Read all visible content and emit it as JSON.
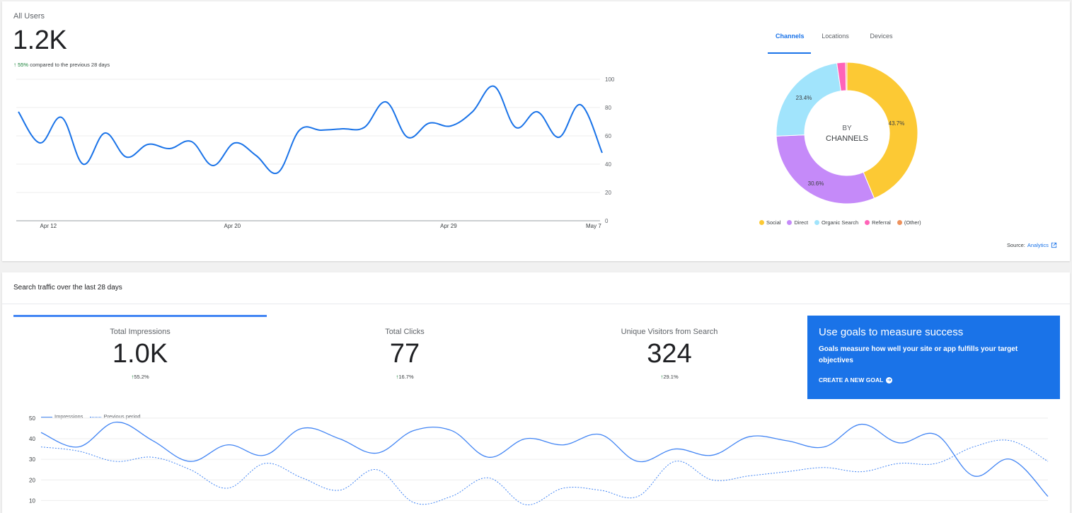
{
  "users": {
    "title": "All Users",
    "value": "1.2K",
    "change_pct": "55%",
    "change_text": "compared to the previous 28 days"
  },
  "channel_tabs": [
    "Channels",
    "Locations",
    "Devices"
  ],
  "donut": {
    "center_line1": "BY",
    "center_line2": "CHANNELS",
    "labels": {
      "social": "43.7%",
      "direct": "30.6%",
      "organic": "23.4%"
    }
  },
  "legend": [
    {
      "label": "Social",
      "color": "#fcc934"
    },
    {
      "label": "Direct",
      "color": "#c58af9"
    },
    {
      "label": "Organic Search",
      "color": "#a1e4fc"
    },
    {
      "label": "Referral",
      "color": "#ff63b8"
    },
    {
      "label": "(Other)",
      "color": "#ee925d"
    }
  ],
  "source": {
    "label": "Source:",
    "link": "Analytics"
  },
  "search": {
    "title": "Search traffic over the last 28 days",
    "metrics": [
      {
        "label": "Total Impressions",
        "value": "1.0K",
        "change": "55.2%"
      },
      {
        "label": "Total Clicks",
        "value": "77",
        "change": "16.7%"
      },
      {
        "label": "Unique Visitors from Search",
        "value": "324",
        "change": "29.1%"
      }
    ]
  },
  "goal": {
    "title": "Use goals to measure success",
    "desc": "Goals measure how well your site or app fulfills your target objectives",
    "button": "CREATE A NEW GOAL"
  },
  "imp_legend": {
    "current": "Impressions",
    "previous": "Previous period"
  },
  "chart_data": [
    {
      "type": "line",
      "title": "",
      "x_ticks": [
        "Apr 12",
        "Apr 20",
        "Apr 29",
        "May 7"
      ],
      "ylim": [
        0,
        100
      ],
      "y_ticks": [
        0,
        20,
        40,
        60,
        80,
        100
      ],
      "series": [
        {
          "values": [
            77,
            55,
            73,
            40,
            62,
            45,
            54,
            51,
            56,
            39,
            55,
            46,
            34,
            64,
            64,
            65,
            66,
            84,
            59,
            69,
            67,
            77,
            95,
            66,
            77,
            59,
            82,
            48
          ]
        }
      ],
      "grid": true,
      "line_color": "#1a73e8"
    },
    {
      "type": "pie",
      "slices": [
        {
          "label": "Social",
          "value": 43.7,
          "color": "#fcc934"
        },
        {
          "label": "Direct",
          "value": 30.6,
          "color": "#c58af9"
        },
        {
          "label": "Organic Search",
          "value": 23.4,
          "color": "#a1e4fc"
        },
        {
          "label": "Referral",
          "value": 2.0,
          "color": "#ff63b8"
        },
        {
          "label": "(Other)",
          "value": 0.3,
          "color": "#ee925d"
        }
      ]
    },
    {
      "type": "line",
      "y_ticks": [
        10,
        20,
        30,
        40,
        50
      ],
      "ylim": [
        5,
        52
      ],
      "series": [
        {
          "name": "Impressions",
          "values": [
            43,
            36,
            48,
            39,
            29,
            37,
            32,
            45,
            40,
            33,
            44,
            44,
            31,
            40,
            37,
            42,
            29,
            35,
            32,
            41,
            39,
            36,
            47,
            38,
            42,
            22,
            30,
            12
          ]
        },
        {
          "name": "Previous period",
          "values": [
            36,
            34,
            29,
            31,
            25,
            16,
            28,
            21,
            15,
            25,
            9,
            12,
            21,
            8,
            16,
            15,
            12,
            29,
            20,
            22,
            24,
            26,
            24,
            28,
            28,
            36,
            39,
            29
          ]
        }
      ],
      "grid": true
    }
  ]
}
